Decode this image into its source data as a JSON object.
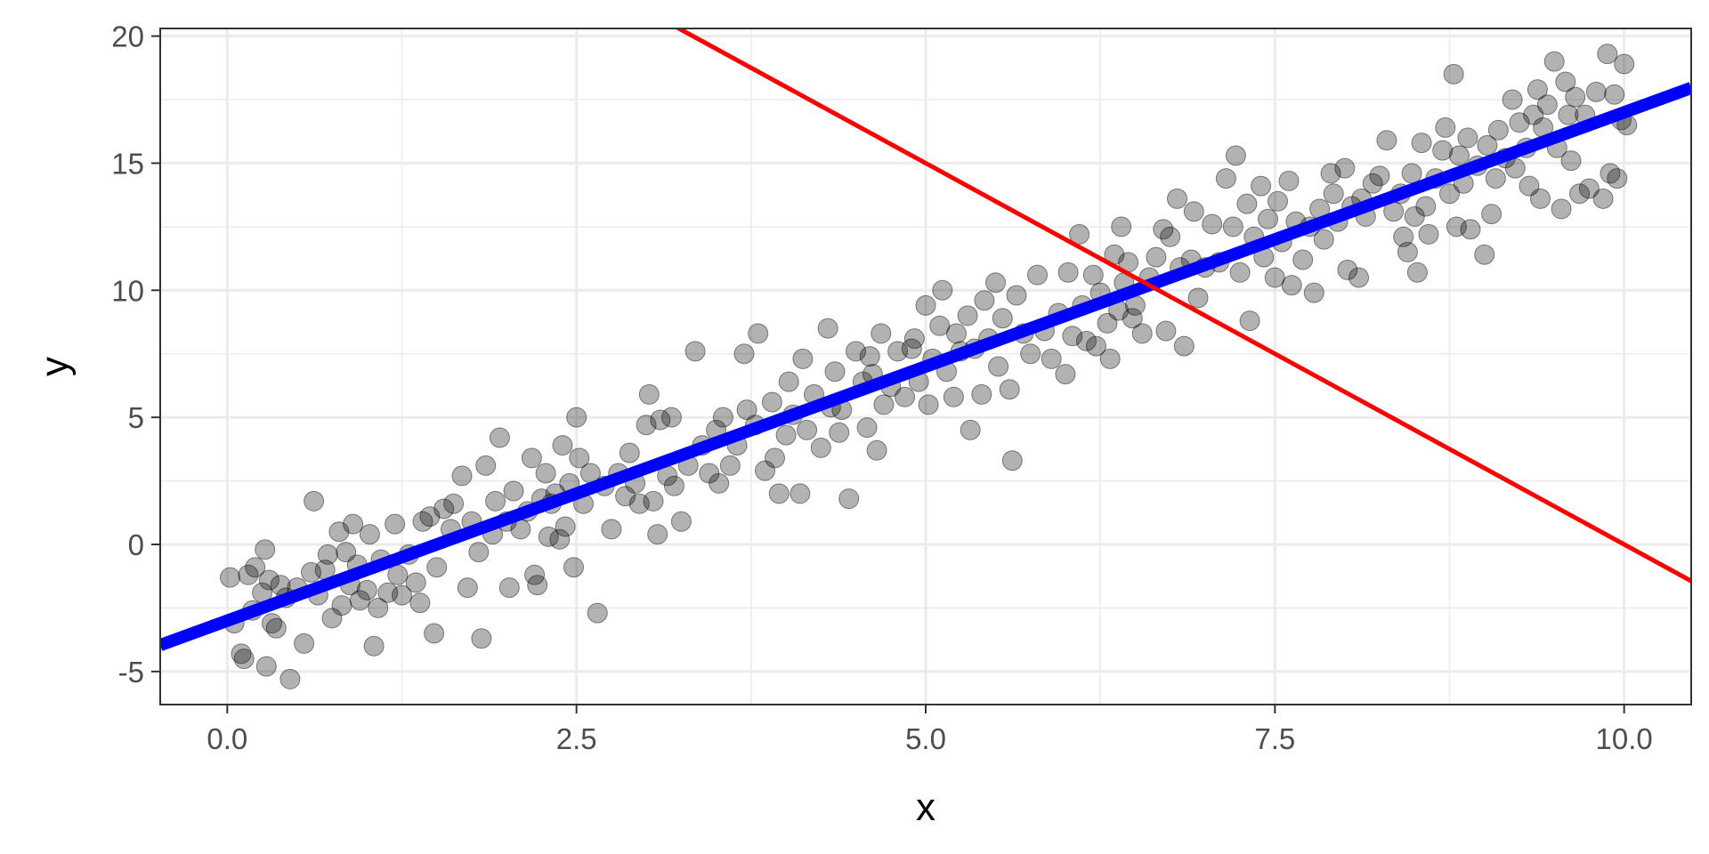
{
  "chart_data": {
    "type": "scatter",
    "title": "",
    "xlabel": "x",
    "ylabel": "y",
    "xlim": [
      -0.48,
      10.48
    ],
    "ylim": [
      -6.3,
      20.3
    ],
    "x_ticks": [
      0.0,
      2.5,
      5.0,
      7.5,
      10.0
    ],
    "x_tick_labels": [
      "0.0",
      "2.5",
      "5.0",
      "7.5",
      "10.0"
    ],
    "y_ticks": [
      -5,
      0,
      5,
      10,
      15,
      20
    ],
    "y_tick_labels": [
      "-5",
      "0",
      "5",
      "10",
      "15",
      "20"
    ],
    "grid": true,
    "legend": "none",
    "colors": {
      "points": "#000000",
      "points_opacity": 0.3,
      "fit_line": "#0000ff",
      "reference_line": "#ff0000",
      "grid": "#ebebeb",
      "panel_border": "#333333"
    },
    "lines": [
      {
        "role": "fit",
        "color": "#0000ff",
        "intercept": -3.0,
        "slope": 2.0
      },
      {
        "role": "reference",
        "color": "#ff0000",
        "intercept": 30.0,
        "slope": -3.0
      }
    ],
    "points": [
      [
        0.02,
        -1.3
      ],
      [
        0.05,
        -3.1
      ],
      [
        0.1,
        -4.3
      ],
      [
        0.12,
        -4.5
      ],
      [
        0.15,
        -1.2
      ],
      [
        0.18,
        -2.6
      ],
      [
        0.2,
        -0.9
      ],
      [
        0.25,
        -1.9
      ],
      [
        0.27,
        -0.2
      ],
      [
        0.28,
        -4.8
      ],
      [
        0.3,
        -1.4
      ],
      [
        0.32,
        -3.1
      ],
      [
        0.35,
        -3.3
      ],
      [
        0.38,
        -1.6
      ],
      [
        0.42,
        -2.1
      ],
      [
        0.45,
        -5.3
      ],
      [
        0.5,
        -1.7
      ],
      [
        0.55,
        -3.9
      ],
      [
        0.6,
        -1.1
      ],
      [
        0.62,
        1.7
      ],
      [
        0.65,
        -2.0
      ],
      [
        0.7,
        -1.0
      ],
      [
        0.72,
        -0.4
      ],
      [
        0.75,
        -2.9
      ],
      [
        0.8,
        0.5
      ],
      [
        0.82,
        -2.4
      ],
      [
        0.85,
        -0.3
      ],
      [
        0.88,
        -1.6
      ],
      [
        0.9,
        0.8
      ],
      [
        0.93,
        -0.8
      ],
      [
        0.95,
        -2.2
      ],
      [
        1.0,
        -1.8
      ],
      [
        1.02,
        0.4
      ],
      [
        1.05,
        -4.0
      ],
      [
        1.08,
        -2.5
      ],
      [
        1.1,
        -0.6
      ],
      [
        1.15,
        -1.9
      ],
      [
        1.2,
        0.8
      ],
      [
        1.22,
        -1.2
      ],
      [
        1.25,
        -2.0
      ],
      [
        1.3,
        -0.4
      ],
      [
        1.35,
        -1.5
      ],
      [
        1.38,
        -2.3
      ],
      [
        1.4,
        0.9
      ],
      [
        1.45,
        1.1
      ],
      [
        1.48,
        -3.5
      ],
      [
        1.5,
        -0.9
      ],
      [
        1.55,
        1.4
      ],
      [
        1.6,
        0.6
      ],
      [
        1.62,
        1.6
      ],
      [
        1.68,
        2.7
      ],
      [
        1.72,
        -1.7
      ],
      [
        1.75,
        0.9
      ],
      [
        1.8,
        -0.3
      ],
      [
        1.82,
        -3.7
      ],
      [
        1.85,
        3.1
      ],
      [
        1.9,
        0.4
      ],
      [
        1.92,
        1.7
      ],
      [
        1.95,
        4.2
      ],
      [
        2.0,
        0.9
      ],
      [
        2.02,
        -1.7
      ],
      [
        2.05,
        2.1
      ],
      [
        2.1,
        0.6
      ],
      [
        2.15,
        1.3
      ],
      [
        2.18,
        3.4
      ],
      [
        2.2,
        -1.2
      ],
      [
        2.22,
        -1.6
      ],
      [
        2.25,
        1.8
      ],
      [
        2.28,
        2.8
      ],
      [
        2.3,
        0.3
      ],
      [
        2.32,
        1.6
      ],
      [
        2.35,
        2.0
      ],
      [
        2.38,
        0.2
      ],
      [
        2.4,
        3.9
      ],
      [
        2.42,
        0.7
      ],
      [
        2.45,
        2.4
      ],
      [
        2.48,
        -0.9
      ],
      [
        2.5,
        5.0
      ],
      [
        2.52,
        3.4
      ],
      [
        2.55,
        1.6
      ],
      [
        2.6,
        2.8
      ],
      [
        2.65,
        -2.7
      ],
      [
        2.7,
        2.3
      ],
      [
        2.75,
        0.6
      ],
      [
        2.8,
        2.8
      ],
      [
        2.85,
        1.9
      ],
      [
        2.88,
        3.6
      ],
      [
        2.92,
        2.4
      ],
      [
        2.95,
        1.6
      ],
      [
        3.0,
        4.7
      ],
      [
        3.02,
        5.9
      ],
      [
        3.05,
        1.7
      ],
      [
        3.08,
        0.4
      ],
      [
        3.1,
        4.9
      ],
      [
        3.15,
        2.7
      ],
      [
        3.18,
        5.0
      ],
      [
        3.2,
        2.3
      ],
      [
        3.25,
        0.9
      ],
      [
        3.3,
        3.1
      ],
      [
        3.35,
        7.6
      ],
      [
        3.4,
        3.9
      ],
      [
        3.45,
        2.8
      ],
      [
        3.5,
        4.5
      ],
      [
        3.52,
        2.4
      ],
      [
        3.55,
        5.0
      ],
      [
        3.6,
        3.1
      ],
      [
        3.65,
        3.9
      ],
      [
        3.7,
        7.5
      ],
      [
        3.72,
        5.3
      ],
      [
        3.78,
        4.7
      ],
      [
        3.8,
        8.3
      ],
      [
        3.85,
        2.9
      ],
      [
        3.9,
        5.6
      ],
      [
        3.92,
        3.4
      ],
      [
        3.95,
        2.0
      ],
      [
        4.0,
        4.3
      ],
      [
        4.02,
        6.4
      ],
      [
        4.05,
        5.1
      ],
      [
        4.1,
        2.0
      ],
      [
        4.12,
        7.3
      ],
      [
        4.15,
        4.5
      ],
      [
        4.2,
        5.9
      ],
      [
        4.25,
        3.8
      ],
      [
        4.3,
        8.5
      ],
      [
        4.32,
        5.4
      ],
      [
        4.35,
        6.8
      ],
      [
        4.38,
        4.4
      ],
      [
        4.4,
        5.3
      ],
      [
        4.45,
        1.8
      ],
      [
        4.5,
        7.6
      ],
      [
        4.55,
        6.4
      ],
      [
        4.58,
        4.6
      ],
      [
        4.6,
        7.4
      ],
      [
        4.62,
        6.7
      ],
      [
        4.65,
        3.7
      ],
      [
        4.68,
        8.3
      ],
      [
        4.7,
        5.5
      ],
      [
        4.75,
        6.2
      ],
      [
        4.8,
        7.6
      ],
      [
        4.85,
        5.8
      ],
      [
        4.9,
        7.7
      ],
      [
        4.92,
        8.1
      ],
      [
        4.95,
        6.4
      ],
      [
        5.0,
        9.4
      ],
      [
        5.02,
        5.5
      ],
      [
        5.05,
        7.3
      ],
      [
        5.1,
        8.6
      ],
      [
        5.12,
        10.0
      ],
      [
        5.15,
        6.8
      ],
      [
        5.2,
        5.8
      ],
      [
        5.22,
        8.3
      ],
      [
        5.25,
        7.6
      ],
      [
        5.3,
        9.0
      ],
      [
        5.32,
        4.5
      ],
      [
        5.35,
        7.7
      ],
      [
        5.4,
        5.9
      ],
      [
        5.42,
        9.6
      ],
      [
        5.45,
        8.1
      ],
      [
        5.5,
        10.3
      ],
      [
        5.52,
        7.0
      ],
      [
        5.55,
        8.9
      ],
      [
        5.6,
        6.1
      ],
      [
        5.62,
        3.3
      ],
      [
        5.65,
        9.8
      ],
      [
        5.7,
        8.3
      ],
      [
        5.75,
        7.5
      ],
      [
        5.8,
        10.6
      ],
      [
        5.85,
        8.4
      ],
      [
        5.9,
        7.3
      ],
      [
        5.95,
        9.1
      ],
      [
        6.0,
        6.7
      ],
      [
        6.02,
        10.7
      ],
      [
        6.05,
        8.2
      ],
      [
        6.1,
        12.2
      ],
      [
        6.12,
        9.4
      ],
      [
        6.15,
        8.0
      ],
      [
        6.2,
        10.6
      ],
      [
        6.22,
        7.8
      ],
      [
        6.25,
        9.9
      ],
      [
        6.3,
        8.7
      ],
      [
        6.32,
        7.3
      ],
      [
        6.35,
        11.4
      ],
      [
        6.38,
        9.2
      ],
      [
        6.4,
        12.5
      ],
      [
        6.42,
        10.3
      ],
      [
        6.45,
        11.1
      ],
      [
        6.48,
        8.9
      ],
      [
        6.5,
        9.4
      ],
      [
        6.55,
        8.3
      ],
      [
        6.6,
        10.5
      ],
      [
        6.65,
        11.3
      ],
      [
        6.7,
        12.4
      ],
      [
        6.72,
        8.4
      ],
      [
        6.75,
        12.1
      ],
      [
        6.8,
        13.6
      ],
      [
        6.82,
        10.9
      ],
      [
        6.85,
        7.8
      ],
      [
        6.9,
        11.2
      ],
      [
        6.92,
        13.1
      ],
      [
        6.95,
        9.7
      ],
      [
        7.0,
        10.9
      ],
      [
        7.05,
        12.6
      ],
      [
        7.1,
        11.1
      ],
      [
        7.15,
        14.4
      ],
      [
        7.2,
        12.5
      ],
      [
        7.22,
        15.3
      ],
      [
        7.25,
        10.7
      ],
      [
        7.3,
        13.4
      ],
      [
        7.32,
        8.8
      ],
      [
        7.35,
        12.1
      ],
      [
        7.4,
        14.1
      ],
      [
        7.42,
        11.3
      ],
      [
        7.45,
        12.8
      ],
      [
        7.5,
        10.5
      ],
      [
        7.52,
        13.5
      ],
      [
        7.55,
        11.9
      ],
      [
        7.6,
        14.3
      ],
      [
        7.62,
        10.2
      ],
      [
        7.65,
        12.7
      ],
      [
        7.7,
        11.2
      ],
      [
        7.75,
        12.5
      ],
      [
        7.78,
        9.9
      ],
      [
        7.82,
        13.2
      ],
      [
        7.85,
        12.0
      ],
      [
        7.9,
        14.6
      ],
      [
        7.92,
        13.8
      ],
      [
        7.95,
        12.7
      ],
      [
        8.0,
        14.8
      ],
      [
        8.02,
        10.8
      ],
      [
        8.05,
        13.3
      ],
      [
        8.1,
        10.5
      ],
      [
        8.12,
        13.6
      ],
      [
        8.15,
        12.9
      ],
      [
        8.2,
        14.2
      ],
      [
        8.25,
        14.5
      ],
      [
        8.3,
        15.9
      ],
      [
        8.35,
        13.1
      ],
      [
        8.4,
        13.8
      ],
      [
        8.42,
        12.1
      ],
      [
        8.45,
        11.5
      ],
      [
        8.48,
        14.6
      ],
      [
        8.5,
        12.9
      ],
      [
        8.52,
        10.7
      ],
      [
        8.55,
        15.8
      ],
      [
        8.58,
        13.3
      ],
      [
        8.6,
        12.2
      ],
      [
        8.65,
        14.4
      ],
      [
        8.7,
        15.5
      ],
      [
        8.72,
        16.4
      ],
      [
        8.75,
        13.8
      ],
      [
        8.78,
        18.5
      ],
      [
        8.8,
        12.5
      ],
      [
        8.82,
        15.3
      ],
      [
        8.85,
        14.2
      ],
      [
        8.88,
        16.0
      ],
      [
        8.9,
        12.4
      ],
      [
        8.95,
        14.9
      ],
      [
        9.0,
        11.4
      ],
      [
        9.02,
        15.7
      ],
      [
        9.05,
        13.0
      ],
      [
        9.08,
        14.4
      ],
      [
        9.1,
        16.3
      ],
      [
        9.15,
        15.2
      ],
      [
        9.2,
        17.5
      ],
      [
        9.22,
        14.8
      ],
      [
        9.25,
        16.6
      ],
      [
        9.3,
        15.6
      ],
      [
        9.32,
        14.1
      ],
      [
        9.35,
        16.9
      ],
      [
        9.38,
        17.9
      ],
      [
        9.4,
        13.6
      ],
      [
        9.42,
        16.4
      ],
      [
        9.45,
        17.3
      ],
      [
        9.5,
        19.0
      ],
      [
        9.52,
        15.6
      ],
      [
        9.55,
        13.2
      ],
      [
        9.58,
        18.2
      ],
      [
        9.6,
        16.9
      ],
      [
        9.62,
        15.1
      ],
      [
        9.65,
        17.6
      ],
      [
        9.68,
        13.8
      ],
      [
        9.72,
        16.9
      ],
      [
        9.75,
        14.0
      ],
      [
        9.8,
        17.8
      ],
      [
        9.85,
        13.6
      ],
      [
        9.88,
        19.3
      ],
      [
        9.9,
        14.6
      ],
      [
        9.93,
        17.7
      ],
      [
        9.95,
        14.4
      ],
      [
        9.98,
        16.7
      ],
      [
        10.0,
        18.9
      ],
      [
        10.02,
        16.5
      ]
    ]
  }
}
